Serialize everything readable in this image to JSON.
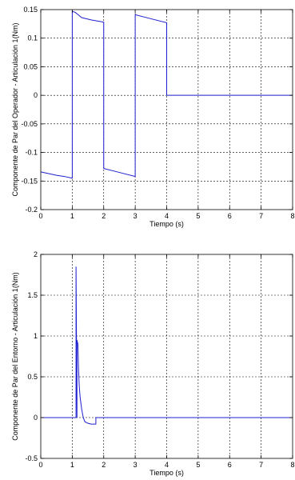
{
  "chart_data": [
    {
      "type": "line",
      "title": "",
      "xlabel": "Tiempo (s)",
      "ylabel": "Componente de Par del Operador - Articulación 1(Nm)",
      "xlim": [
        0,
        8
      ],
      "ylim": [
        -0.2,
        0.15
      ],
      "xticks": [
        0,
        1,
        2,
        3,
        4,
        5,
        6,
        7,
        8
      ],
      "xtick_labels": [
        "0",
        "1",
        "2",
        "3",
        "4",
        "5",
        "6",
        "7",
        "8"
      ],
      "yticks": [
        -0.2,
        -0.15,
        -0.1,
        -0.05,
        0,
        0.05,
        0.1,
        0.15
      ],
      "ytick_labels": [
        "-0.2",
        "-0.15",
        "-0.1",
        "-0.05",
        "0",
        "0.05",
        "0.1",
        "0.15"
      ],
      "grid": true,
      "series": [
        {
          "color": "#1f1fd0",
          "x": [
            0,
            0.25,
            0.5,
            0.75,
            1.0,
            1.0,
            1.1,
            1.3,
            1.6,
            2.0,
            2.0,
            2.5,
            3.0,
            3.0,
            3.5,
            4.0,
            4.0,
            8.0
          ],
          "y": [
            -0.134,
            -0.137,
            -0.14,
            -0.142,
            -0.145,
            0.147,
            0.145,
            0.136,
            0.132,
            0.128,
            -0.128,
            -0.135,
            -0.142,
            0.141,
            0.134,
            0.127,
            0.0,
            0.0
          ]
        }
      ]
    },
    {
      "type": "line",
      "title": "",
      "xlabel": "Tiempo (s)",
      "ylabel": "Componente de Par del Entorno - Articulación 1(Nm)",
      "xlim": [
        0,
        8
      ],
      "ylim": [
        -0.5,
        2
      ],
      "xticks": [
        0,
        1,
        2,
        3,
        4,
        5,
        6,
        7,
        8
      ],
      "xtick_labels": [
        "0",
        "1",
        "2",
        "3",
        "4",
        "5",
        "6",
        "7",
        "8"
      ],
      "yticks": [
        -0.5,
        0,
        0.5,
        1,
        1.5,
        2
      ],
      "ytick_labels": [
        "-0.5",
        "0",
        "0.5",
        "1",
        "1.5",
        "2"
      ],
      "grid": true,
      "series": [
        {
          "color": "#1f1fd0",
          "x": [
            0,
            1.12,
            1.12,
            1.15,
            1.15,
            1.18,
            1.2,
            1.22,
            1.25,
            1.3,
            1.35,
            1.4,
            1.5,
            1.6,
            1.75,
            1.75,
            8.0
          ],
          "y": [
            0,
            0,
            1.85,
            0.0,
            0.95,
            0.9,
            0.6,
            0.4,
            0.25,
            0.1,
            0.0,
            -0.05,
            -0.07,
            -0.08,
            -0.08,
            0,
            0
          ]
        }
      ]
    }
  ]
}
